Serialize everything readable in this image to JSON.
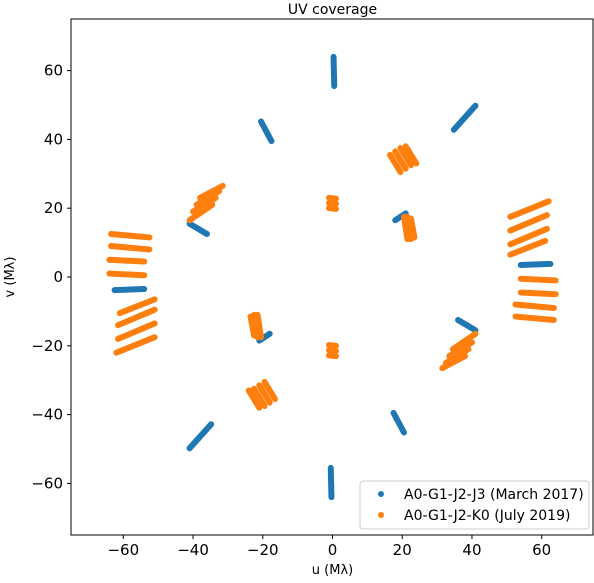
{
  "chart_data": {
    "type": "scatter",
    "title": "UV coverage",
    "xlabel": "u (Mλ)",
    "ylabel": "v (Mλ)",
    "xlim": [
      -75,
      75
    ],
    "ylim": [
      -75,
      75
    ],
    "xticks": [
      -60,
      -40,
      -20,
      0,
      20,
      40,
      60
    ],
    "yticks": [
      -60,
      -40,
      -20,
      0,
      20,
      40,
      60
    ],
    "xtick_labels": [
      "−60",
      "−40",
      "−20",
      "0",
      "20",
      "40",
      "60"
    ],
    "ytick_labels": [
      "−60",
      "−40",
      "−20",
      "0",
      "20",
      "40",
      "60"
    ],
    "grid": false,
    "legend_position": "lower-right",
    "series": [
      {
        "name": "A0-G1-J2-J3 (March 2017)",
        "color": "#1f77b4",
        "tracks": [
          [
            [
              0.3,
              64.0
            ],
            [
              0.5,
              55.5
            ]
          ],
          [
            [
              -0.3,
              -64.0
            ],
            [
              -0.5,
              -55.5
            ]
          ],
          [
            [
              34.8,
              42.8
            ],
            [
              41.0,
              49.8
            ]
          ],
          [
            [
              -34.8,
              -42.8
            ],
            [
              -41.0,
              -49.8
            ]
          ],
          [
            [
              -20.5,
              45.2
            ],
            [
              -17.5,
              39.5
            ]
          ],
          [
            [
              20.5,
              -45.2
            ],
            [
              17.5,
              -39.5
            ]
          ],
          [
            [
              -41.0,
              15.5
            ],
            [
              -36.0,
              12.5
            ]
          ],
          [
            [
              41.0,
              -15.5
            ],
            [
              36.0,
              -12.5
            ]
          ],
          [
            [
              -62.5,
              -3.8
            ],
            [
              -54.0,
              -3.5
            ]
          ],
          [
            [
              62.5,
              3.8
            ],
            [
              54.0,
              3.5
            ]
          ],
          [
            [
              18.0,
              16.5
            ],
            [
              21.0,
              18.5
            ]
          ],
          [
            [
              -18.0,
              -16.5
            ],
            [
              -21.0,
              -18.5
            ]
          ]
        ]
      },
      {
        "name": "A0-G1-J2-K0 (July 2019)",
        "color": "#ff7f0e",
        "tracks": [
          [
            [
              -63.5,
              12.5
            ],
            [
              -52.5,
              11.5
            ]
          ],
          [
            [
              -63.5,
              9.0
            ],
            [
              -52.5,
              8.0
            ]
          ],
          [
            [
              -64.0,
              5.0
            ],
            [
              -54.0,
              4.5
            ]
          ],
          [
            [
              -64.0,
              1.0
            ],
            [
              -54.0,
              0.5
            ]
          ],
          [
            [
              63.5,
              -12.5
            ],
            [
              52.5,
              -11.5
            ]
          ],
          [
            [
              63.5,
              -9.0
            ],
            [
              52.5,
              -8.0
            ]
          ],
          [
            [
              64.0,
              -5.0
            ],
            [
              54.0,
              -4.5
            ]
          ],
          [
            [
              64.0,
              -1.0
            ],
            [
              54.0,
              -0.5
            ]
          ],
          [
            [
              -62.0,
              -22.0
            ],
            [
              -51.0,
              -17.5
            ]
          ],
          [
            [
              -61.5,
              -18.0
            ],
            [
              -51.0,
              -13.5
            ]
          ],
          [
            [
              -61.5,
              -14.0
            ],
            [
              -51.0,
              -9.5
            ]
          ],
          [
            [
              -61.0,
              -10.5
            ],
            [
              -51.0,
              -6.5
            ]
          ],
          [
            [
              62.0,
              22.0
            ],
            [
              51.0,
              17.5
            ]
          ],
          [
            [
              61.5,
              18.0
            ],
            [
              51.0,
              13.5
            ]
          ],
          [
            [
              61.5,
              14.0
            ],
            [
              51.0,
              9.5
            ]
          ],
          [
            [
              61.0,
              10.5
            ],
            [
              51.0,
              6.5
            ]
          ],
          [
            [
              -41.0,
              16.5
            ],
            [
              -34.5,
              21.0
            ]
          ],
          [
            [
              -40.0,
              19.0
            ],
            [
              -33.5,
              23.0
            ]
          ],
          [
            [
              -39.0,
              21.0
            ],
            [
              -32.5,
              25.0
            ]
          ],
          [
            [
              -38.0,
              23.0
            ],
            [
              -31.5,
              26.5
            ]
          ],
          [
            [
              41.0,
              -16.5
            ],
            [
              34.5,
              -21.0
            ]
          ],
          [
            [
              40.0,
              -19.0
            ],
            [
              33.5,
              -23.0
            ]
          ],
          [
            [
              39.0,
              -21.0
            ],
            [
              32.5,
              -25.0
            ]
          ],
          [
            [
              38.0,
              -23.0
            ],
            [
              31.5,
              -26.5
            ]
          ],
          [
            [
              16.5,
              35.5
            ],
            [
              19.5,
              30.5
            ]
          ],
          [
            [
              18.0,
              36.5
            ],
            [
              21.0,
              31.5
            ]
          ],
          [
            [
              19.5,
              37.5
            ],
            [
              22.5,
              32.5
            ]
          ],
          [
            [
              21.0,
              38.0
            ],
            [
              24.0,
              33.0
            ]
          ],
          [
            [
              -16.5,
              -35.5
            ],
            [
              -19.5,
              -30.5
            ]
          ],
          [
            [
              -18.0,
              -36.5
            ],
            [
              -21.0,
              -31.5
            ]
          ],
          [
            [
              -19.5,
              -37.5
            ],
            [
              -22.5,
              -32.5
            ]
          ],
          [
            [
              -21.0,
              -38.0
            ],
            [
              -24.0,
              -33.0
            ]
          ],
          [
            [
              -1.0,
              23.0
            ],
            [
              1.0,
              22.8
            ]
          ],
          [
            [
              -1.0,
              21.5
            ],
            [
              1.0,
              21.3
            ]
          ],
          [
            [
              -1.0,
              20.0
            ],
            [
              1.0,
              19.8
            ]
          ],
          [
            [
              1.0,
              -23.0
            ],
            [
              -1.0,
              -22.8
            ]
          ],
          [
            [
              1.0,
              -21.5
            ],
            [
              -1.0,
              -21.3
            ]
          ],
          [
            [
              1.0,
              -20.0
            ],
            [
              -1.0,
              -19.8
            ]
          ],
          [
            [
              20.5,
              17.5
            ],
            [
              21.5,
              11.0
            ]
          ],
          [
            [
              21.5,
              17.5
            ],
            [
              22.5,
              11.0
            ]
          ],
          [
            [
              22.5,
              17.0
            ],
            [
              23.5,
              11.5
            ]
          ],
          [
            [
              -20.5,
              -17.5
            ],
            [
              -21.5,
              -11.0
            ]
          ],
          [
            [
              -21.5,
              -17.5
            ],
            [
              -22.5,
              -11.0
            ]
          ],
          [
            [
              -22.5,
              -17.0
            ],
            [
              -23.5,
              -11.5
            ]
          ]
        ]
      }
    ]
  }
}
